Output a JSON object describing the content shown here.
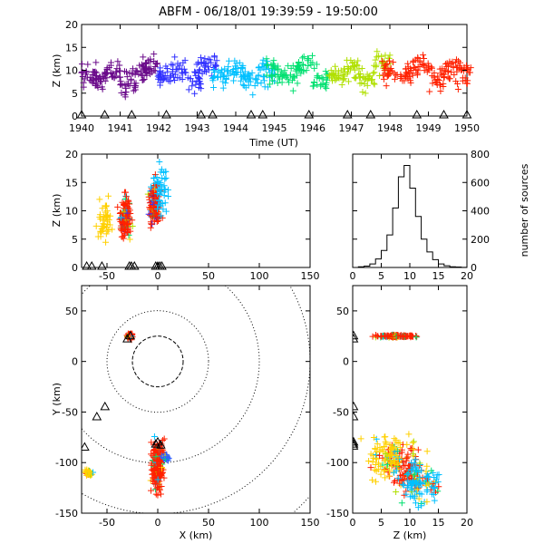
{
  "title": "ABFM - 06/18/01 19:39:59 - 19:50:00",
  "chart_data": [
    {
      "id": "time-height",
      "type": "scatter",
      "xlabel": "Time (UT)",
      "ylabel": "Z (km)",
      "xlim": [
        1940,
        1950
      ],
      "ylim": [
        0,
        20
      ],
      "xticks": [
        "1940",
        "1941",
        "1942",
        "1943",
        "1944",
        "1945",
        "1946",
        "1947",
        "1948",
        "1949",
        "1950"
      ],
      "yticks": [
        "0",
        "5",
        "10",
        "15",
        "20"
      ],
      "color_encoding": "time (purple to red)",
      "series": [
        {
          "x": [
            1940.2,
            1940.5,
            1940.8,
            1941.2,
            1941.5,
            1941.8
          ],
          "y": [
            9,
            8,
            10,
            7,
            9,
            11
          ],
          "color": "#6a0a8a"
        },
        {
          "x": [
            1942.1,
            1942.5,
            1942.9,
            1943.3
          ],
          "y": [
            9,
            10,
            8,
            11
          ],
          "color": "#3030ff"
        },
        {
          "x": [
            1943.6,
            1944.0,
            1944.4,
            1944.8
          ],
          "y": [
            9,
            10,
            8,
            9
          ],
          "color": "#00c0ff"
        },
        {
          "x": [
            1945.0,
            1945.4,
            1945.8,
            1946.2
          ],
          "y": [
            10,
            9,
            11,
            8
          ],
          "color": "#00e070"
        },
        {
          "x": [
            1946.6,
            1947.0,
            1947.4,
            1947.8
          ],
          "y": [
            9,
            10,
            8,
            11
          ],
          "color": "#b0e000"
        },
        {
          "x": [
            1948.0,
            1948.4,
            1948.8,
            1949.2,
            1949.6,
            1949.9
          ],
          "y": [
            10,
            9,
            11,
            8,
            10,
            9
          ],
          "color": "#ff2000"
        }
      ],
      "stations_x": [
        1940.0,
        1940.6,
        1941.3,
        1942.2,
        1943.1,
        1943.4,
        1944.4,
        1944.7,
        1945.9,
        1946.9,
        1947.5,
        1948.7,
        1949.4,
        1950.0
      ]
    },
    {
      "id": "x-height",
      "type": "scatter",
      "ylabel": "Z (km)",
      "xlim": [
        -75,
        150
      ],
      "ylim": [
        0,
        20
      ],
      "xticks": [
        "-50",
        "0",
        "50",
        "100",
        "150"
      ],
      "yticks": [
        "0",
        "5",
        "10",
        "15",
        "20"
      ],
      "clusters": [
        {
          "x": -52,
          "z": 8,
          "color": "#ffd000"
        },
        {
          "x": -32,
          "z": 9,
          "color": "#ff2000"
        },
        {
          "x": -3,
          "z": 11,
          "color": "#ff2000"
        },
        {
          "x": 3,
          "z": 14,
          "color": "#00c0ff"
        }
      ],
      "stations_x": [
        -70,
        -65,
        -55,
        -28,
        -26,
        -23,
        -2,
        0,
        2,
        4
      ]
    },
    {
      "id": "height-histogram",
      "type": "line",
      "ylabel": "number of sources",
      "xlim": [
        0,
        20
      ],
      "ylim": [
        0,
        800
      ],
      "xticks": [
        "0",
        "5",
        "10",
        "15",
        "20"
      ],
      "yticks": [
        "0",
        "200",
        "400",
        "600",
        "800"
      ],
      "x": [
        0,
        1,
        2,
        3,
        4,
        5,
        6,
        7,
        8,
        9,
        10,
        11,
        12,
        13,
        14,
        15,
        16,
        17,
        18,
        19,
        20
      ],
      "y": [
        0,
        5,
        10,
        25,
        60,
        120,
        230,
        420,
        640,
        720,
        560,
        360,
        200,
        110,
        55,
        25,
        12,
        5,
        3,
        1,
        0
      ]
    },
    {
      "id": "plan-view",
      "type": "scatter",
      "xlabel": "X (km)",
      "ylabel": "Y (km)",
      "xlim": [
        -75,
        150
      ],
      "ylim": [
        -150,
        75
      ],
      "xticks": [
        "-50",
        "0",
        "50",
        "100",
        "150"
      ],
      "yticks": [
        "-150",
        "-100",
        "-50",
        "0",
        "50"
      ],
      "range_rings_km": [
        25,
        50,
        100,
        150,
        200
      ],
      "clusters": [
        {
          "x": -27,
          "y": 25,
          "color": "#ff2000"
        },
        {
          "x": 0,
          "y": -105,
          "color": "#ff2000"
        },
        {
          "x": -68,
          "y": -110,
          "color": "#ffd000"
        },
        {
          "x": 8,
          "y": -95,
          "color": "#3060ff"
        }
      ],
      "stations": [
        [
          -27,
          25
        ],
        [
          -30,
          22
        ],
        [
          -52,
          -45
        ],
        [
          -60,
          -55
        ],
        [
          -72,
          -85
        ],
        [
          -2,
          -82
        ],
        [
          0,
          -80
        ],
        [
          3,
          -83
        ]
      ]
    },
    {
      "id": "height-y",
      "type": "scatter",
      "xlabel": "Z (km)",
      "xlim": [
        0,
        20
      ],
      "ylim": [
        -150,
        75
      ],
      "xticks": [
        "0",
        "5",
        "10",
        "15",
        "20"
      ],
      "clusters": [
        {
          "z": 8,
          "y": 25,
          "color": "#ff2000"
        },
        {
          "z": 9,
          "y": -105,
          "color": "#ff2000"
        },
        {
          "z": 12,
          "y": -120,
          "color": "#00c0ff"
        },
        {
          "z": 6,
          "y": -95,
          "color": "#ffd000"
        }
      ],
      "stations_y": [
        25,
        22,
        -45,
        -55,
        -80,
        -82,
        -84
      ]
    }
  ]
}
